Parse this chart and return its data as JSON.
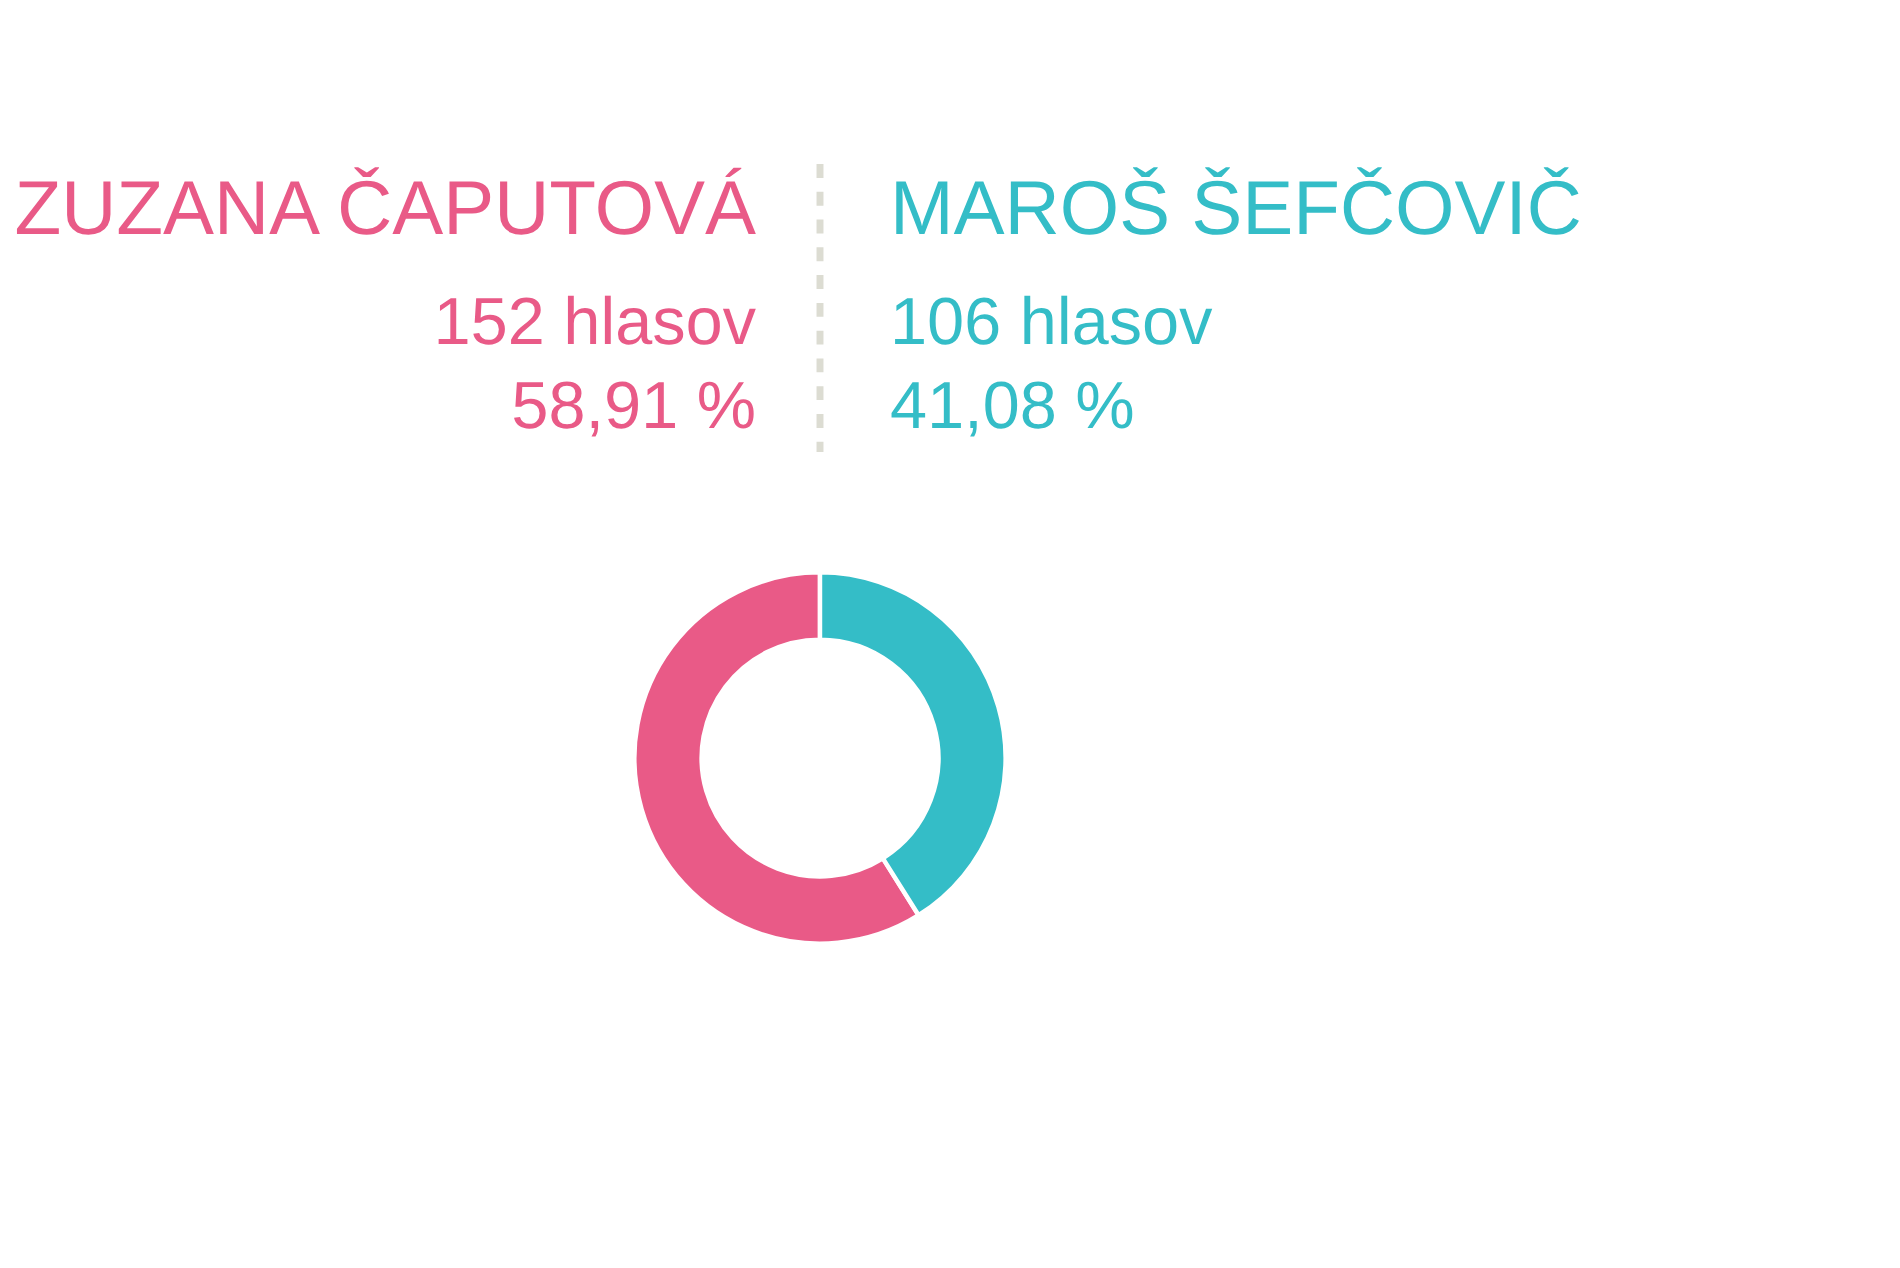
{
  "chart_data": {
    "type": "donut",
    "categories": [
      "ZUZANA ČAPUTOVÁ",
      "MAROŠ ŠEFČOVIČ"
    ],
    "values": [
      152,
      106
    ],
    "colors": [
      "#e95a87",
      "#34bdc7"
    ],
    "value_labels": [
      "152 hlasov\n58,91 %",
      "106 hlasov\n41,08 %"
    ]
  }
}
